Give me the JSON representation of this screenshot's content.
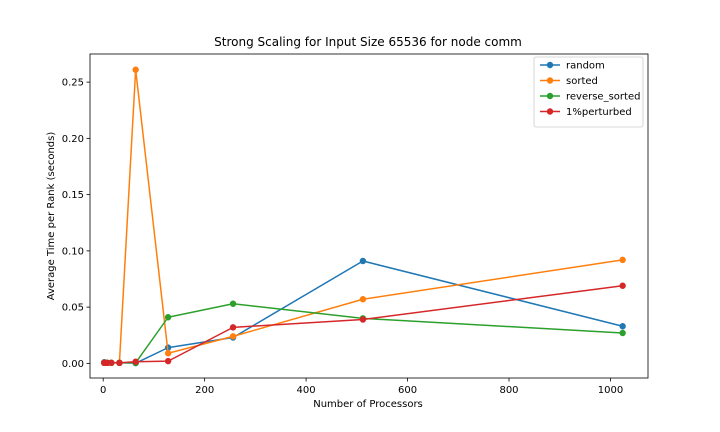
{
  "chart_data": {
    "type": "line",
    "title": "Strong Scaling for Input Size 65536 for node comm",
    "xlabel": "Number of Processors",
    "ylabel": "Average Time per Rank (seconds)",
    "xlim": [
      -26,
      1074
    ],
    "ylim": [
      -0.013,
      0.275
    ],
    "xticks": [
      0,
      200,
      400,
      600,
      800,
      1000
    ],
    "yticks": [
      0.0,
      0.05,
      0.1,
      0.15,
      0.2,
      0.25
    ],
    "ytick_labels": [
      "0.00",
      "0.05",
      "0.10",
      "0.15",
      "0.20",
      "0.25"
    ],
    "grid": false,
    "legend_position": "upper right",
    "series": [
      {
        "name": "random",
        "color": "#1f77b4",
        "x": [
          2,
          4,
          8,
          16,
          32,
          64,
          128,
          256,
          512,
          1024
        ],
        "y": [
          0.001,
          0.0005,
          0.0005,
          0.0005,
          0.0005,
          0.0002,
          0.014,
          0.023,
          0.091,
          0.033
        ]
      },
      {
        "name": "sorted",
        "color": "#ff7f0e",
        "x": [
          2,
          4,
          8,
          16,
          32,
          64,
          128,
          256,
          512,
          1024
        ],
        "y": [
          0.0005,
          0.0005,
          0.0005,
          0.0005,
          0.0005,
          0.261,
          0.009,
          0.024,
          0.057,
          0.092
        ]
      },
      {
        "name": "reverse_sorted",
        "color": "#2ca02c",
        "x": [
          2,
          4,
          8,
          16,
          32,
          64,
          128,
          256,
          512,
          1024
        ],
        "y": [
          0.0005,
          0.0005,
          0.0005,
          0.0005,
          0.0005,
          0.0005,
          0.041,
          0.053,
          0.04,
          0.027
        ]
      },
      {
        "name": "1%perturbed",
        "color": "#d62728",
        "x": [
          2,
          4,
          8,
          16,
          32,
          64,
          128,
          256,
          512,
          1024
        ],
        "y": [
          0.0005,
          0.0005,
          0.0005,
          0.0005,
          0.0005,
          0.0015,
          0.002,
          0.032,
          0.039,
          0.069
        ]
      }
    ]
  }
}
